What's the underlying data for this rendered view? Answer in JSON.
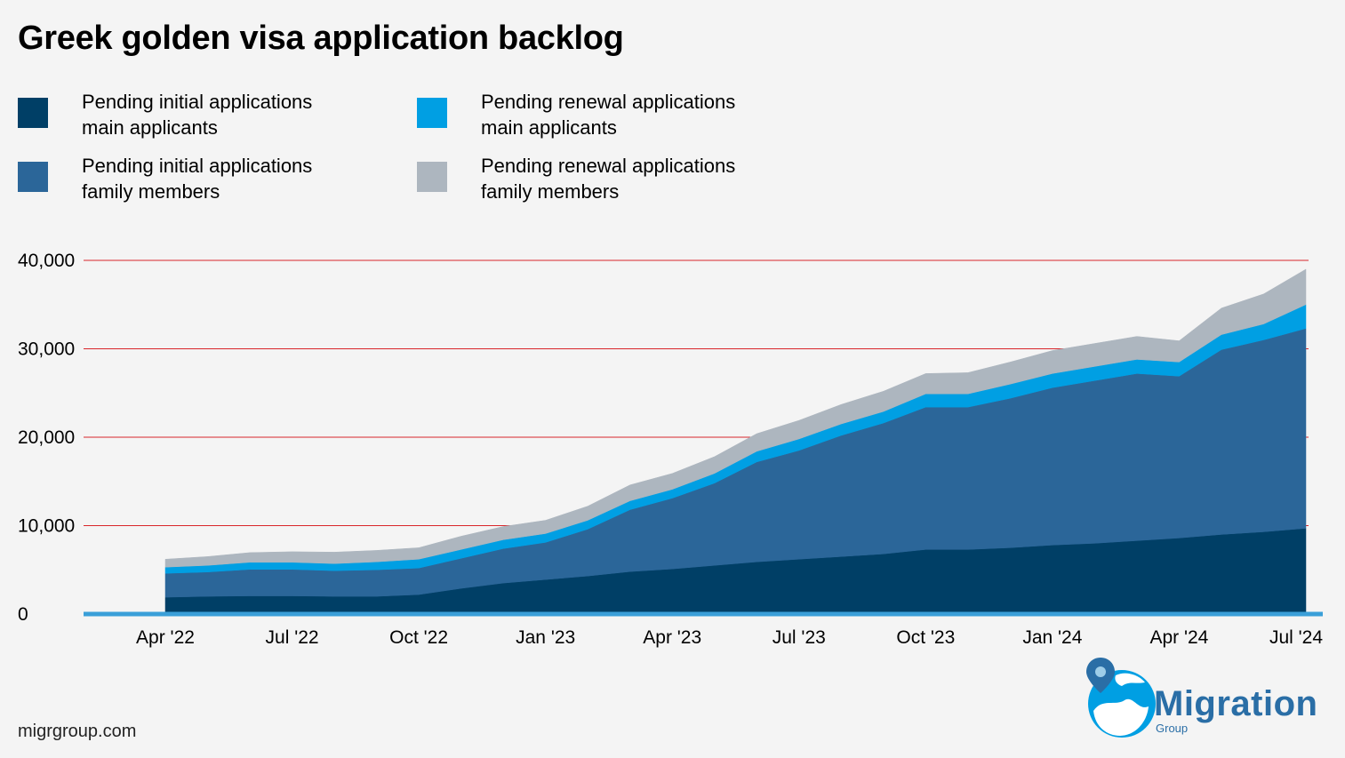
{
  "title": "Greek golden visa application backlog",
  "footer": "migrgroup.com",
  "logo": {
    "word": "Migration",
    "sub": "Group",
    "icon": "globe-pin-icon"
  },
  "chart_data": {
    "type": "area",
    "stacked": true,
    "x": [
      "Apr '22",
      "May '22",
      "Jun '22",
      "Jul '22",
      "Aug '22",
      "Sep '22",
      "Oct '22",
      "Nov '22",
      "Dec '22",
      "Jan '23",
      "Feb '23",
      "Mar '23",
      "Apr '23",
      "May '23",
      "Jun '23",
      "Jul '23",
      "Aug '23",
      "Sep '23",
      "Oct '23",
      "Nov '23",
      "Dec '23",
      "Jan '24",
      "Feb '24",
      "Mar '24",
      "Apr '24",
      "May '24",
      "Jun '24",
      "Jul '24"
    ],
    "series": [
      {
        "name": "Pending initial applications\nmain applicants",
        "color": "#003f66",
        "values": [
          1900,
          2000,
          2050,
          2050,
          2000,
          2000,
          2200,
          2900,
          3500,
          3900,
          4300,
          4800,
          5100,
          5500,
          5900,
          6200,
          6500,
          6800,
          7300,
          7300,
          7500,
          7800,
          8000,
          8300,
          8600,
          9000,
          9300,
          9700
        ]
      },
      {
        "name": "Pending initial applications\nfamily members",
        "color": "#2b6699",
        "values": [
          2700,
          2750,
          3000,
          3000,
          2900,
          3000,
          3000,
          3400,
          3900,
          4200,
          5300,
          7000,
          8000,
          9300,
          11300,
          12300,
          13700,
          14800,
          16100,
          16100,
          16900,
          17800,
          18400,
          18900,
          18300,
          20900,
          21700,
          22600
        ]
      },
      {
        "name": "Pending renewal applications\nmain applicants",
        "color": "#009fe3",
        "values": [
          700,
          750,
          800,
          800,
          800,
          900,
          1000,
          1000,
          1000,
          1000,
          1000,
          1000,
          1000,
          1100,
          1200,
          1300,
          1300,
          1300,
          1500,
          1500,
          1600,
          1600,
          1600,
          1600,
          1600,
          1700,
          1800,
          2700
        ]
      },
      {
        "name": "Pending renewal applications\nfamily members",
        "color": "#adb6bf",
        "values": [
          900,
          1000,
          1100,
          1200,
          1300,
          1300,
          1300,
          1500,
          1500,
          1500,
          1600,
          1800,
          1800,
          1900,
          2000,
          2100,
          2200,
          2300,
          2300,
          2400,
          2500,
          2600,
          2600,
          2600,
          2400,
          3000,
          3400,
          4000
        ]
      }
    ],
    "xticks": [
      "Apr '22",
      "Jul '22",
      "Oct '22",
      "Jan '23",
      "Apr '23",
      "Jul '23",
      "Oct '23",
      "Jan '24",
      "Apr '24",
      "Jul '24"
    ],
    "yticks": [
      "0",
      "10,000",
      "20,000",
      "30,000",
      "40,000"
    ],
    "ylim": [
      0,
      40000
    ],
    "gridlines": true,
    "legend_position": "top-left"
  }
}
